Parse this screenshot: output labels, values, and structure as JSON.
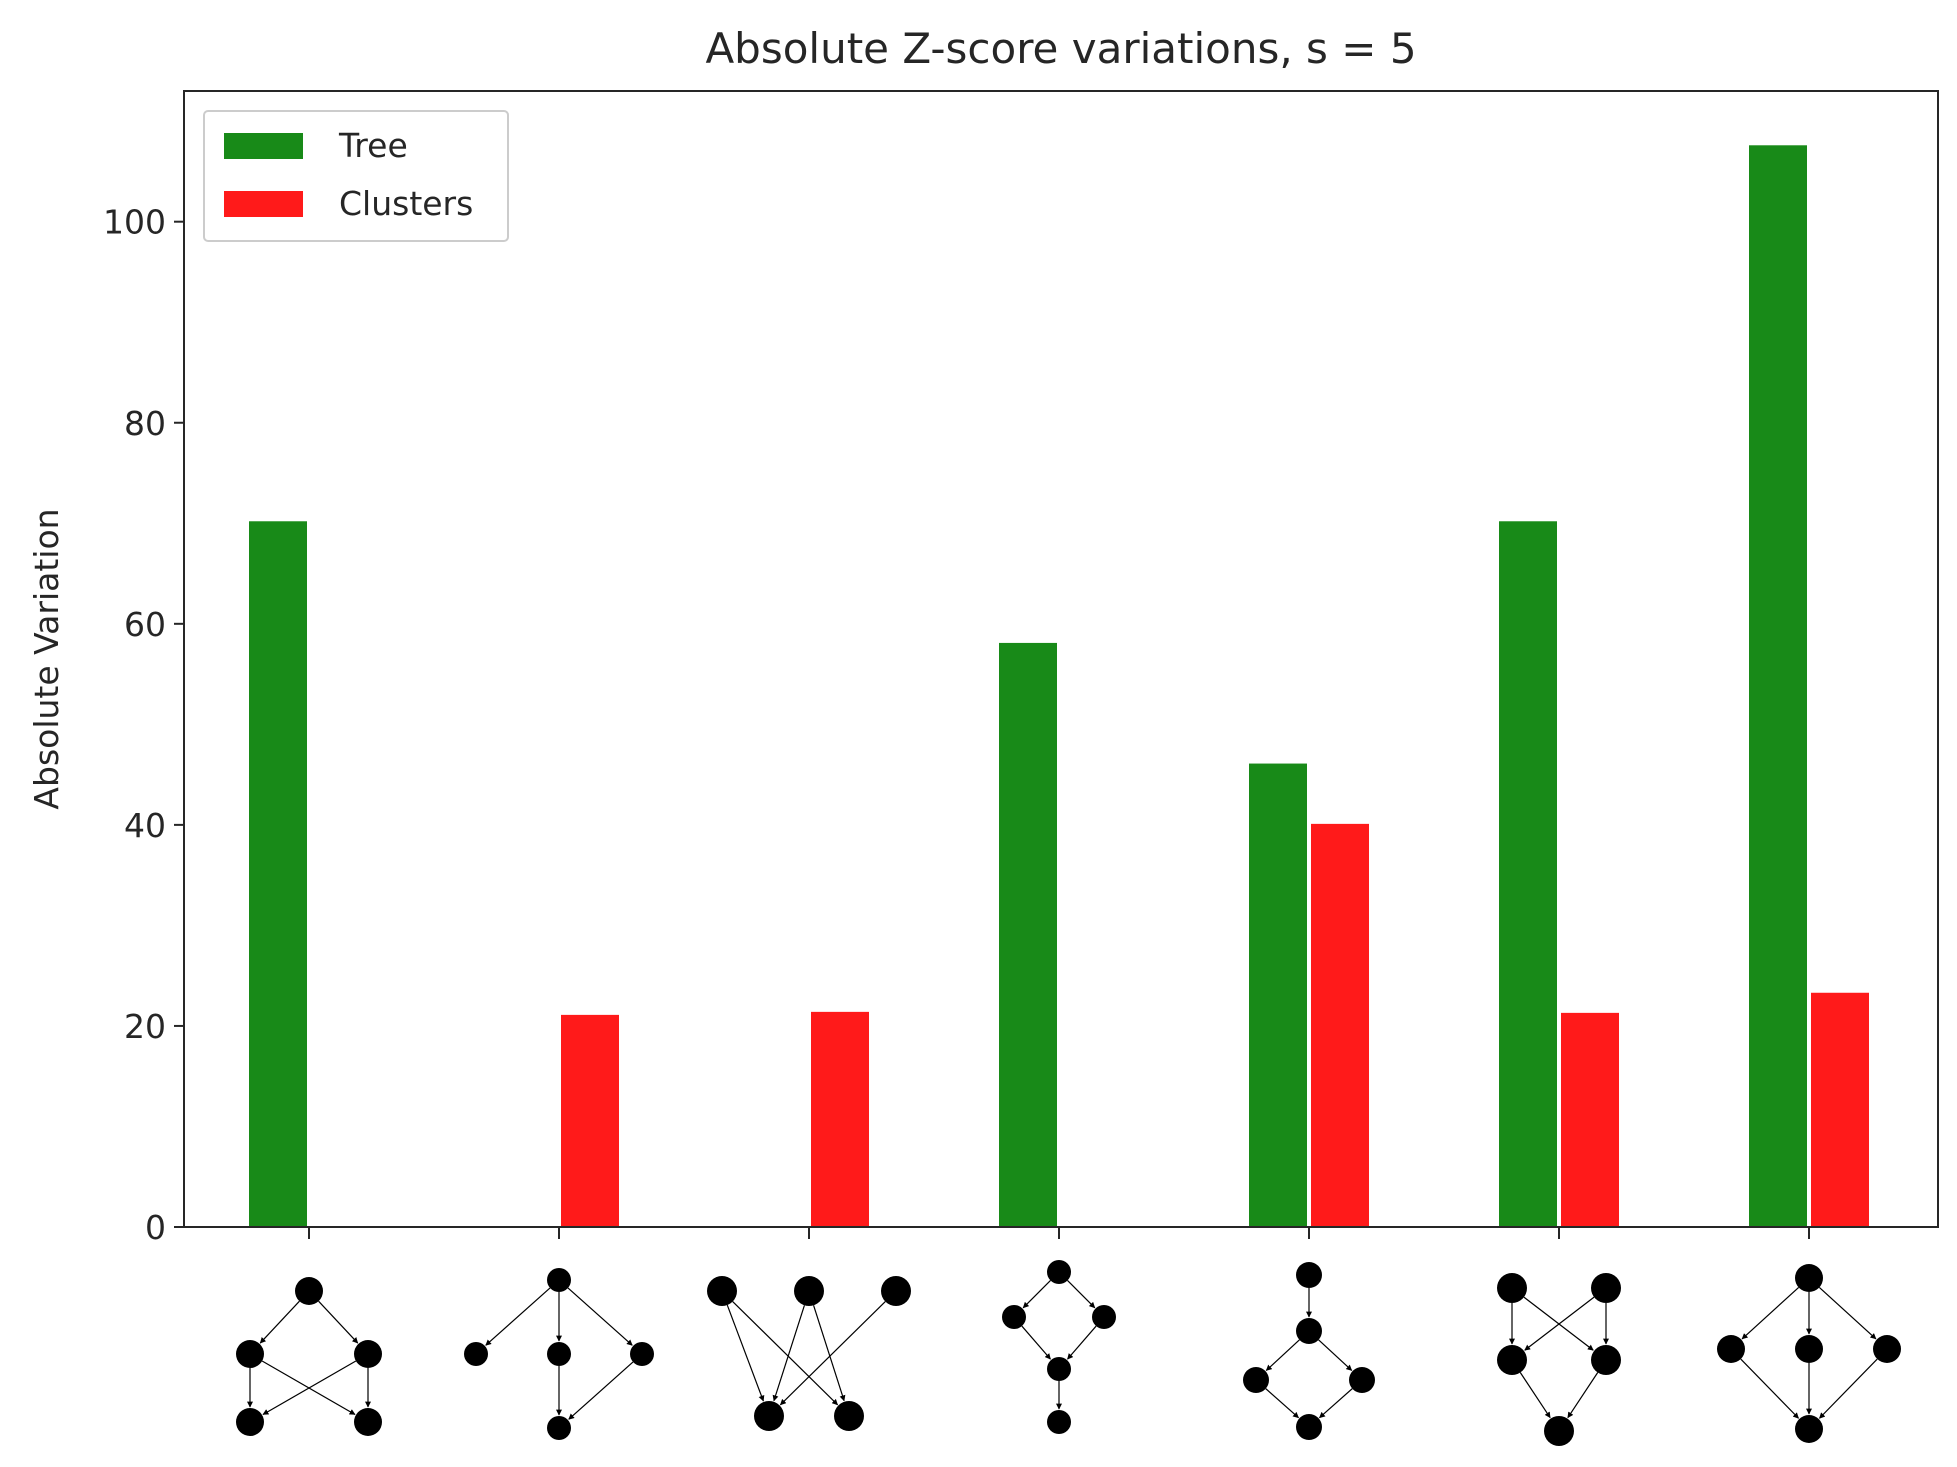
{
  "chart_data": {
    "type": "bar",
    "title": "Absolute Z-score variations, s = 5",
    "xlabel": "",
    "ylabel": "Absolute Variation",
    "ylim": [
      0,
      113
    ],
    "yticks": [
      0,
      20,
      40,
      60,
      80,
      100
    ],
    "grid": false,
    "legend_placement": "top-left",
    "categories": [
      "motif 1",
      "motif 2",
      "motif 3",
      "motif 4",
      "motif 5",
      "motif 6",
      "motif 7"
    ],
    "series": [
      {
        "name": "Tree",
        "color": "#188a18",
        "values": [
          70.2,
          0,
          0,
          58.1,
          46.1,
          70.2,
          107.6
        ]
      },
      {
        "name": "Clusters",
        "color": "#ff1a1a",
        "values": [
          0,
          21.1,
          21.4,
          0,
          40.1,
          21.3,
          23.3
        ]
      }
    ],
    "x_tick_icons": [
      "network-motif-icon",
      "network-motif-icon",
      "network-motif-icon",
      "network-motif-icon",
      "network-motif-icon",
      "network-motif-icon",
      "network-motif-icon"
    ]
  }
}
